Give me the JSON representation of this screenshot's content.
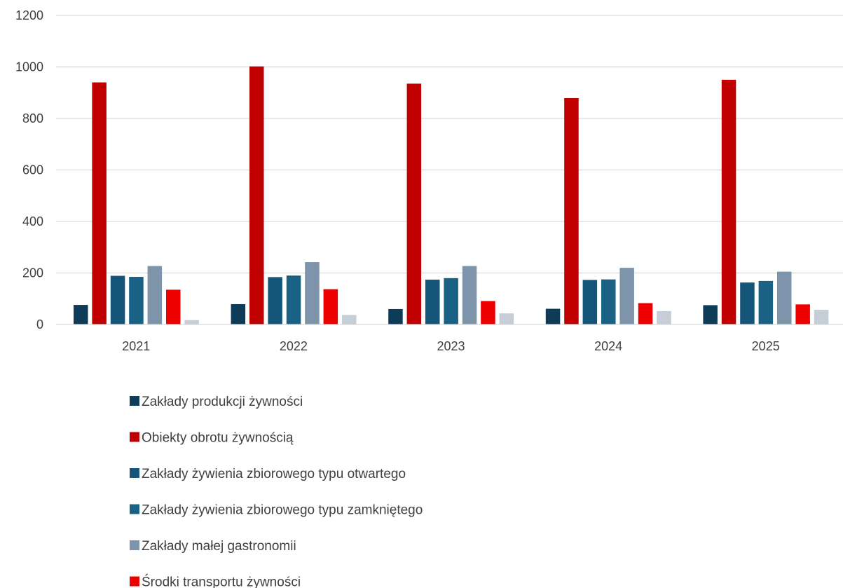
{
  "chart_data": {
    "type": "bar",
    "title": "",
    "xlabel": "",
    "ylabel": "",
    "ylim": [
      0,
      1200
    ],
    "yticks": [
      0,
      200,
      400,
      600,
      800,
      1000,
      1200
    ],
    "grid": "horizontal",
    "legend_position": "bottom",
    "categories": [
      "2021",
      "2022",
      "2023",
      "2024",
      "2025"
    ],
    "series": [
      {
        "name": "Zakłady produkcji żywności",
        "color": "#0e3b58",
        "values": [
          76,
          79,
          60,
          61,
          75
        ]
      },
      {
        "name": "Obiekty obrotu żywnością",
        "color": "#c00000",
        "values": [
          940,
          1002,
          935,
          879,
          950
        ]
      },
      {
        "name": "Zakłady żywienia zbiorowego typu otwartego",
        "color": "#15557a",
        "values": [
          189,
          184,
          174,
          173,
          163
        ]
      },
      {
        "name": "Zakłady żywienia zbiorowego typu zamkniętego",
        "color": "#1a6285",
        "values": [
          185,
          190,
          180,
          175,
          169
        ]
      },
      {
        "name": "Zakłady małej gastronomii",
        "color": "#7d94aa",
        "values": [
          227,
          242,
          227,
          220,
          205
        ]
      },
      {
        "name": "Środki transportu żywności",
        "color": "#ee0000",
        "values": [
          135,
          137,
          91,
          83,
          78
        ]
      },
      {
        "name": "",
        "color": "#c5cdd6",
        "values": [
          17,
          37,
          43,
          52,
          57
        ]
      }
    ]
  }
}
